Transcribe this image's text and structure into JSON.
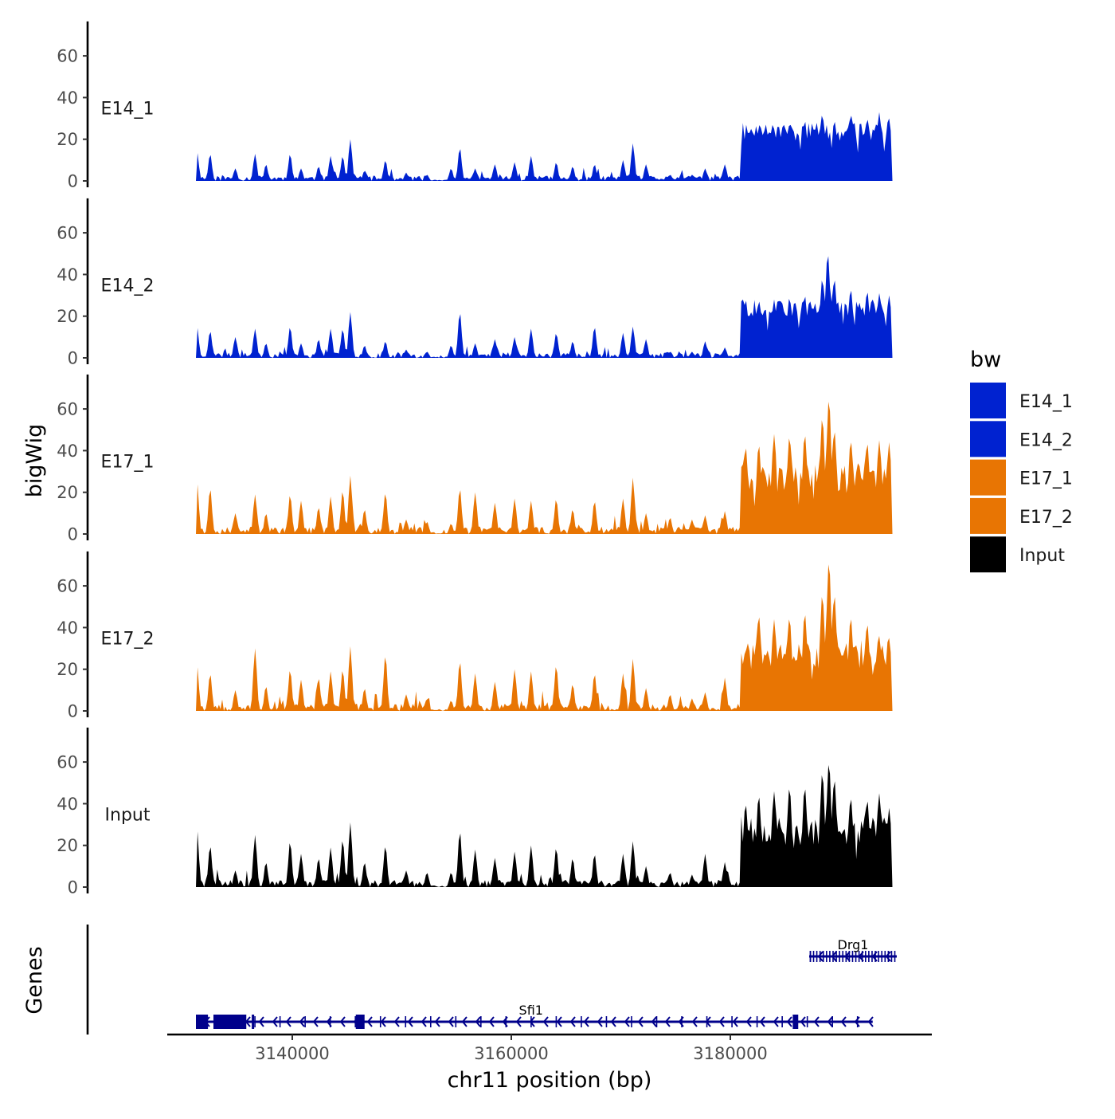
{
  "chart_data": {
    "type": "area",
    "ylabel": "bigWig",
    "xlabel": "chr11 position (bp)",
    "genes_label": "Genes",
    "xlim": [
      3128000,
      3198000
    ],
    "x_ticks": [
      3140000,
      3160000,
      3180000
    ],
    "x_tick_labels": [
      "3140000",
      "3160000",
      "3180000"
    ],
    "ylim": [
      0,
      75
    ],
    "y_ticks": [
      0,
      20,
      40,
      60
    ],
    "y_tick_labels": [
      "0",
      "20",
      "40",
      "60"
    ],
    "signal_start": 3131200,
    "signal_end": 3194800,
    "legend": {
      "title": "bw",
      "items": [
        {
          "name": "E14_1",
          "color": "#0022D0"
        },
        {
          "name": "E14_2",
          "color": "#0022D0"
        },
        {
          "name": "E17_1",
          "color": "#E87503"
        },
        {
          "name": "E17_2",
          "color": "#E87503"
        },
        {
          "name": "Input",
          "color": "#000000"
        }
      ]
    },
    "series": [
      {
        "name": "E14_1",
        "color": "#0022D0",
        "peaks": [
          [
            3131300,
            14
          ],
          [
            3132500,
            13
          ],
          [
            3134800,
            6
          ],
          [
            3136600,
            13
          ],
          [
            3137600,
            8
          ],
          [
            3139800,
            13
          ],
          [
            3140800,
            6
          ],
          [
            3142400,
            7
          ],
          [
            3143500,
            12
          ],
          [
            3144600,
            12
          ],
          [
            3145300,
            20
          ],
          [
            3146600,
            5
          ],
          [
            3148500,
            10
          ],
          [
            3150400,
            4
          ],
          [
            3152300,
            3
          ],
          [
            3154500,
            6
          ],
          [
            3155300,
            16
          ],
          [
            3156700,
            6
          ],
          [
            3158500,
            8
          ],
          [
            3160300,
            9
          ],
          [
            3161800,
            12
          ],
          [
            3164100,
            9
          ],
          [
            3165600,
            7
          ],
          [
            3167600,
            8
          ],
          [
            3170200,
            10
          ],
          [
            3171100,
            18
          ],
          [
            3172300,
            8
          ],
          [
            3174500,
            3
          ],
          [
            3176500,
            3
          ],
          [
            3177700,
            6
          ],
          [
            3179500,
            8
          ],
          [
            3181400,
            22
          ],
          [
            3182600,
            25
          ],
          [
            3184000,
            25
          ],
          [
            3185400,
            27
          ],
          [
            3186800,
            29
          ],
          [
            3188400,
            32
          ],
          [
            3189500,
            29
          ],
          [
            3191000,
            32
          ],
          [
            3192500,
            30
          ],
          [
            3193600,
            33
          ],
          [
            3194500,
            30
          ]
        ],
        "noise": 2.5,
        "amp": 2.0,
        "seed": 11
      },
      {
        "name": "E14_2",
        "color": "#0022D0",
        "peaks": [
          [
            3131300,
            15
          ],
          [
            3132500,
            13
          ],
          [
            3134800,
            10
          ],
          [
            3136600,
            14
          ],
          [
            3137600,
            7
          ],
          [
            3139800,
            15
          ],
          [
            3140800,
            7
          ],
          [
            3142400,
            9
          ],
          [
            3143500,
            14
          ],
          [
            3144600,
            14
          ],
          [
            3145300,
            22
          ],
          [
            3146600,
            6
          ],
          [
            3148500,
            8
          ],
          [
            3150400,
            4
          ],
          [
            3152300,
            3
          ],
          [
            3154500,
            6
          ],
          [
            3155300,
            22
          ],
          [
            3156700,
            7
          ],
          [
            3158500,
            9
          ],
          [
            3160300,
            10
          ],
          [
            3161800,
            14
          ],
          [
            3164100,
            12
          ],
          [
            3165600,
            8
          ],
          [
            3167600,
            15
          ],
          [
            3170200,
            12
          ],
          [
            3171100,
            15
          ],
          [
            3172300,
            9
          ],
          [
            3174500,
            3
          ],
          [
            3176500,
            3
          ],
          [
            3177700,
            8
          ],
          [
            3179500,
            5
          ],
          [
            3181400,
            28
          ],
          [
            3182600,
            27
          ],
          [
            3184000,
            28
          ],
          [
            3185400,
            29
          ],
          [
            3186800,
            30
          ],
          [
            3188400,
            38
          ],
          [
            3188900,
            50
          ],
          [
            3189500,
            38
          ],
          [
            3191000,
            33
          ],
          [
            3192500,
            32
          ],
          [
            3193600,
            31
          ],
          [
            3194500,
            30
          ]
        ],
        "noise": 2.5,
        "amp": 2.0,
        "seed": 23
      },
      {
        "name": "E17_1",
        "color": "#E87503",
        "peaks": [
          [
            3131300,
            25
          ],
          [
            3132500,
            22
          ],
          [
            3134800,
            10
          ],
          [
            3136600,
            19
          ],
          [
            3137600,
            10
          ],
          [
            3139800,
            19
          ],
          [
            3140800,
            16
          ],
          [
            3142400,
            13
          ],
          [
            3143500,
            18
          ],
          [
            3144600,
            21
          ],
          [
            3145300,
            28
          ],
          [
            3146600,
            12
          ],
          [
            3148500,
            20
          ],
          [
            3150400,
            7
          ],
          [
            3152300,
            6
          ],
          [
            3154500,
            5
          ],
          [
            3155300,
            22
          ],
          [
            3156700,
            20
          ],
          [
            3158500,
            15
          ],
          [
            3160300,
            17
          ],
          [
            3161800,
            16
          ],
          [
            3164100,
            17
          ],
          [
            3165600,
            12
          ],
          [
            3167600,
            16
          ],
          [
            3170200,
            17
          ],
          [
            3171100,
            27
          ],
          [
            3172300,
            10
          ],
          [
            3174500,
            8
          ],
          [
            3176500,
            7
          ],
          [
            3177700,
            9
          ],
          [
            3179500,
            11
          ],
          [
            3181400,
            42
          ],
          [
            3182600,
            43
          ],
          [
            3184000,
            48
          ],
          [
            3185400,
            47
          ],
          [
            3186800,
            48
          ],
          [
            3188400,
            56
          ],
          [
            3189000,
            65
          ],
          [
            3189500,
            50
          ],
          [
            3191000,
            45
          ],
          [
            3192500,
            44
          ],
          [
            3193600,
            45
          ],
          [
            3194500,
            44
          ]
        ],
        "noise": 3.5,
        "amp": 3.5,
        "seed": 37
      },
      {
        "name": "E17_2",
        "color": "#E87503",
        "peaks": [
          [
            3131300,
            22
          ],
          [
            3132500,
            18
          ],
          [
            3134800,
            10
          ],
          [
            3136600,
            30
          ],
          [
            3137600,
            12
          ],
          [
            3139800,
            20
          ],
          [
            3140800,
            15
          ],
          [
            3142400,
            16
          ],
          [
            3143500,
            19
          ],
          [
            3144600,
            20
          ],
          [
            3145300,
            31
          ],
          [
            3146600,
            11
          ],
          [
            3148500,
            27
          ],
          [
            3150400,
            8
          ],
          [
            3152300,
            6
          ],
          [
            3154500,
            5
          ],
          [
            3155300,
            24
          ],
          [
            3156700,
            18
          ],
          [
            3158500,
            14
          ],
          [
            3160300,
            20
          ],
          [
            3161800,
            19
          ],
          [
            3164100,
            22
          ],
          [
            3165600,
            13
          ],
          [
            3167600,
            18
          ],
          [
            3170200,
            18
          ],
          [
            3171100,
            25
          ],
          [
            3172300,
            11
          ],
          [
            3174500,
            8
          ],
          [
            3176500,
            6
          ],
          [
            3177700,
            9
          ],
          [
            3179500,
            16
          ],
          [
            3181400,
            30
          ],
          [
            3182600,
            46
          ],
          [
            3184000,
            44
          ],
          [
            3185400,
            45
          ],
          [
            3186800,
            47
          ],
          [
            3188400,
            56
          ],
          [
            3189000,
            72
          ],
          [
            3189500,
            56
          ],
          [
            3191000,
            45
          ],
          [
            3192500,
            42
          ],
          [
            3193600,
            36
          ],
          [
            3194500,
            35
          ]
        ],
        "noise": 3.5,
        "amp": 3.5,
        "seed": 53
      },
      {
        "name": "Input",
        "color": "#000000",
        "peaks": [
          [
            3131300,
            28
          ],
          [
            3132500,
            20
          ],
          [
            3134800,
            8
          ],
          [
            3136600,
            25
          ],
          [
            3137600,
            12
          ],
          [
            3139800,
            22
          ],
          [
            3140800,
            16
          ],
          [
            3142400,
            14
          ],
          [
            3143500,
            19
          ],
          [
            3144600,
            23
          ],
          [
            3145300,
            31
          ],
          [
            3146600,
            12
          ],
          [
            3148500,
            20
          ],
          [
            3150400,
            8
          ],
          [
            3152300,
            7
          ],
          [
            3154500,
            7
          ],
          [
            3155300,
            27
          ],
          [
            3156700,
            18
          ],
          [
            3158500,
            14
          ],
          [
            3160300,
            17
          ],
          [
            3161800,
            20
          ],
          [
            3164100,
            19
          ],
          [
            3165600,
            14
          ],
          [
            3167600,
            16
          ],
          [
            3170200,
            16
          ],
          [
            3171100,
            22
          ],
          [
            3172300,
            10
          ],
          [
            3174500,
            7
          ],
          [
            3176500,
            6
          ],
          [
            3177700,
            16
          ],
          [
            3179500,
            12
          ],
          [
            3181400,
            40
          ],
          [
            3182600,
            44
          ],
          [
            3184000,
            46
          ],
          [
            3185400,
            48
          ],
          [
            3186800,
            48
          ],
          [
            3188400,
            55
          ],
          [
            3189000,
            60
          ],
          [
            3189500,
            52
          ],
          [
            3191000,
            43
          ],
          [
            3192500,
            42
          ],
          [
            3193600,
            45
          ],
          [
            3194500,
            38
          ]
        ],
        "noise": 3.5,
        "amp": 3.5,
        "seed": 71
      }
    ],
    "genes": [
      {
        "name": "Drg1",
        "strand": "-",
        "start": 3187200,
        "end": 3195200,
        "row": 1,
        "exons": []
      },
      {
        "name": "Sfi1",
        "strand": "-",
        "start": 3131200,
        "end": 3193000,
        "row": 2,
        "exons": [
          [
            3131200,
            3132300
          ],
          [
            3132800,
            3135800
          ],
          [
            3136300,
            3136450
          ],
          [
            3145800,
            3146600
          ],
          [
            3185700,
            3186200
          ]
        ]
      }
    ]
  }
}
